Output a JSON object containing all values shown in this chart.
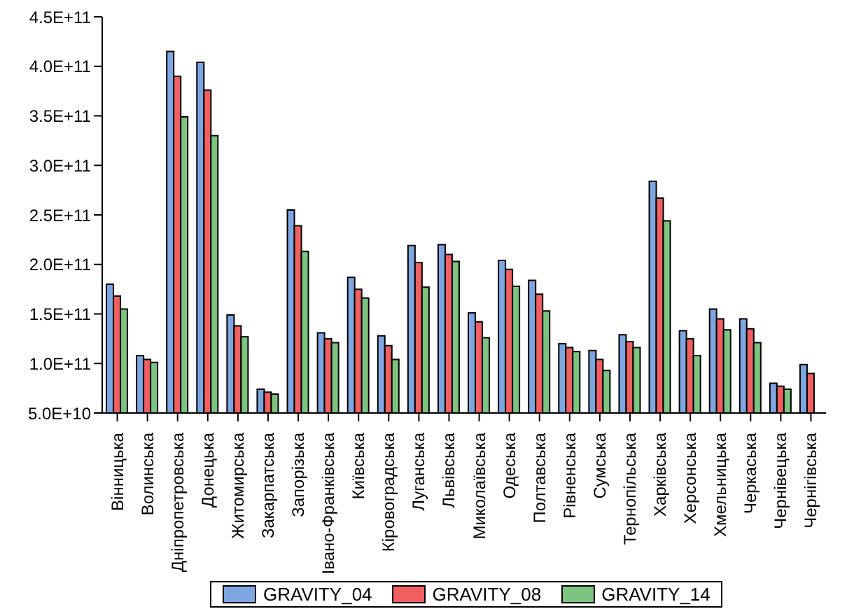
{
  "chart_data": {
    "type": "bar",
    "categories": [
      "Вінницька",
      "Волинська",
      "Дніпропетровська",
      "Донецька",
      "Житомирська",
      "Закарпатська",
      "Запорізька",
      "Івано-Франківська",
      "Київська",
      "Кіровоградська",
      "Луганська",
      "Львівська",
      "Миколаївська",
      "Одеська",
      "Полтавська",
      "Рівненська",
      "Сумська",
      "Тернопільська",
      "Харківська",
      "Херсонська",
      "Хмельницька",
      "Черкаська",
      "Чернівецька",
      "Чернігівська"
    ],
    "series": [
      {
        "name": "GRAVITY_04",
        "color": "#7ea6e0",
        "values": [
          180000000000,
          108000000000,
          415000000000,
          404000000000,
          149000000000,
          74000000000,
          255000000000,
          131000000000,
          187000000000,
          128000000000,
          219000000000,
          220000000000,
          151000000000,
          204000000000,
          184000000000,
          120000000000,
          113000000000,
          129000000000,
          284000000000,
          133000000000,
          155000000000,
          145000000000,
          80000000000,
          99000000000
        ]
      },
      {
        "name": "GRAVITY_08",
        "color": "#f06060",
        "values": [
          168000000000,
          104000000000,
          390000000000,
          376000000000,
          138000000000,
          71000000000,
          239000000000,
          125000000000,
          175000000000,
          118000000000,
          202000000000,
          210000000000,
          142000000000,
          195000000000,
          170000000000,
          116000000000,
          104000000000,
          122000000000,
          267000000000,
          125000000000,
          145000000000,
          135000000000,
          77000000000,
          90000000000
        ]
      },
      {
        "name": "GRAVITY_14",
        "color": "#7cc47f",
        "values": [
          155000000000,
          101000000000,
          349000000000,
          330000000000,
          127000000000,
          69000000000,
          213000000000,
          121000000000,
          166000000000,
          104000000000,
          177000000000,
          203000000000,
          126000000000,
          178000000000,
          153000000000,
          112000000000,
          93000000000,
          116000000000,
          244000000000,
          108000000000,
          134000000000,
          121000000000,
          74000000000,
          null
        ]
      }
    ],
    "ylim": [
      50000000000,
      450000000000
    ],
    "yticks": [
      {
        "value": 50000000000,
        "label": "5.0E+10"
      },
      {
        "value": 100000000000,
        "label": "1.0E+11"
      },
      {
        "value": 150000000000,
        "label": "1.5E+11"
      },
      {
        "value": 200000000000,
        "label": "2.0E+11"
      },
      {
        "value": 250000000000,
        "label": "2.5E+11"
      },
      {
        "value": 300000000000,
        "label": "3.0E+11"
      },
      {
        "value": 350000000000,
        "label": "3.5E+11"
      },
      {
        "value": 400000000000,
        "label": "4.0E+11"
      },
      {
        "value": 450000000000,
        "label": "4.5E+11"
      }
    ],
    "grid": false,
    "legend": "bottom"
  }
}
